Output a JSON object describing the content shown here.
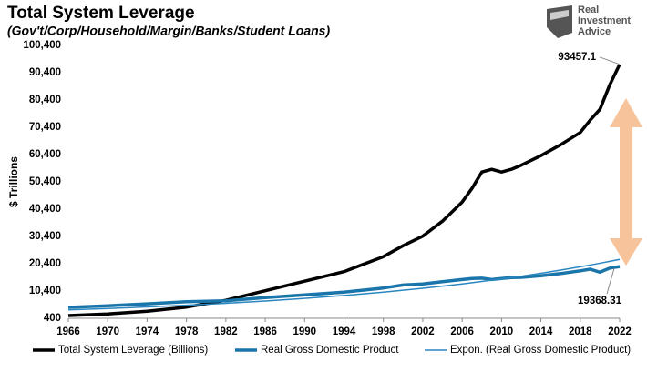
{
  "chart_data": {
    "type": "line",
    "title": "Total System Leverage",
    "subtitle": "(Gov't/Corp/Household/Margin/Banks/Student Loans)",
    "logo": [
      "Real",
      "Investment",
      "Advice"
    ],
    "y_label": "$ Trillions",
    "x": [
      1966,
      1970,
      1974,
      1978,
      1982,
      1986,
      1990,
      1994,
      1998,
      2000,
      2002,
      2004,
      2006,
      2007,
      2008,
      2009,
      2010,
      2011,
      2012,
      2014,
      2016,
      2018,
      2019,
      2020,
      2021,
      2022
    ],
    "series": [
      {
        "name": "Total System Leverage (Billions)",
        "color": "#000000",
        "width": 3.5,
        "values": [
          1400,
          2000,
          3000,
          4500,
          7000,
          10500,
          14000,
          17500,
          23000,
          27000,
          30500,
          36000,
          43000,
          48000,
          54000,
          55000,
          54000,
          55000,
          56500,
          60000,
          64000,
          68500,
          73000,
          77000,
          86000,
          93457.1
        ]
      },
      {
        "name": "Real Gross Domestic Product",
        "color": "#1a75aa",
        "width": 3.5,
        "values": [
          4400,
          5000,
          5700,
          6500,
          6800,
          8000,
          9000,
          10000,
          11500,
          12600,
          13000,
          13800,
          14600,
          15000,
          15100,
          14600,
          15000,
          15300,
          15400,
          16000,
          16800,
          17800,
          18400,
          17300,
          18800,
          19368.31
        ]
      },
      {
        "name": "Expon. (Real Gross Domestic Product)",
        "color": "#2a86c0",
        "width": 1.5,
        "values": [
          3500,
          3990,
          4550,
          5190,
          5920,
          6750,
          7690,
          8770,
          10000,
          10680,
          11400,
          12180,
          13000,
          13440,
          13890,
          14350,
          14830,
          15320,
          15830,
          16910,
          18060,
          19280,
          19920,
          20590,
          21280,
          21990
        ]
      }
    ],
    "xlim": [
      1966,
      2022
    ],
    "xticks": [
      1966,
      1970,
      1974,
      1978,
      1982,
      1986,
      1990,
      1994,
      1998,
      2002,
      2006,
      2010,
      2014,
      2018,
      2022
    ],
    "ylim": [
      400,
      100400
    ],
    "yticks": [
      400,
      {
        "value": 10400,
        "label": "10,400"
      },
      {
        "value": 20400,
        "label": "20,400"
      },
      {
        "value": 30400,
        "label": "30,400"
      },
      {
        "value": 40400,
        "label": "40,400"
      },
      {
        "value": 50400,
        "label": "50,400"
      },
      {
        "value": 60400,
        "label": "60,400"
      },
      {
        "value": 70400,
        "label": "70,400"
      },
      {
        "value": 80400,
        "label": "80,400"
      },
      {
        "value": 90400,
        "label": "90,400"
      },
      {
        "value": 100400,
        "label": "100,400"
      }
    ],
    "grid": false,
    "legend": "bottom"
  }
}
